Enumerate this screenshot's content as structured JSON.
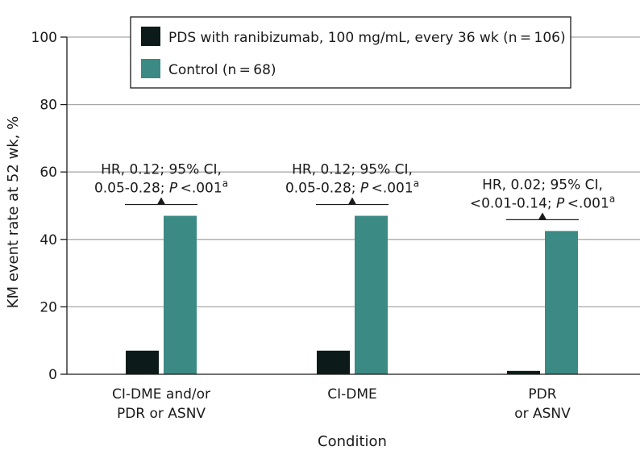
{
  "chart_data": {
    "type": "bar",
    "xlabel": "Condition",
    "ylabel": "KM event rate at 52 wk, %",
    "ylim": [
      0,
      100
    ],
    "yticks": [
      0,
      20,
      40,
      60,
      80,
      100
    ],
    "grid": true,
    "legend_position": "top-right",
    "categories": [
      [
        "CI-DME and/or",
        "PDR or ASNV"
      ],
      [
        "CI-DME"
      ],
      [
        "PDR",
        "or ASNV"
      ]
    ],
    "series": [
      {
        "name": "PDS with ranibizumab, 100 mg/mL, every 36 wk (n = 106)",
        "color": "#0d1a1a",
        "values": [
          7,
          7,
          1
        ]
      },
      {
        "name": "Control (n = 68)",
        "color": "#3b8a84",
        "values": [
          47,
          47,
          42.5
        ]
      }
    ],
    "annotations": [
      {
        "category": 0,
        "line1": "HR, 0.12; 95% CI,",
        "line2_pre": "0.05-0.28; ",
        "line2_italic": "P",
        "line2_post": " <.001",
        "superscript": "a"
      },
      {
        "category": 1,
        "line1": "HR, 0.12; 95% CI,",
        "line2_pre": "0.05-0.28; ",
        "line2_italic": "P",
        "line2_post": " <.001",
        "superscript": "a"
      },
      {
        "category": 2,
        "line1": "HR, 0.02; 95% CI,",
        "line2_pre": "<0.01-0.14; ",
        "line2_italic": "P",
        "line2_post": " <.001",
        "superscript": "a"
      }
    ]
  }
}
